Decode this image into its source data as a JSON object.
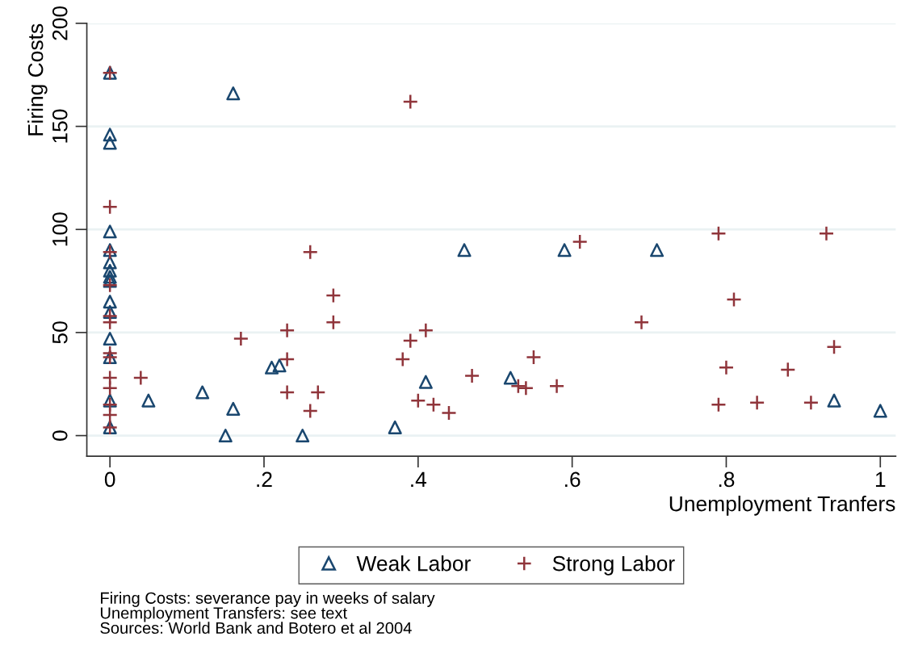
{
  "chart_data": {
    "type": "scatter",
    "xlabel": "Unemployment Tranfers",
    "ylabel": "Firing Costs",
    "xlim": [
      -0.03,
      1.02
    ],
    "ylim": [
      -10,
      200
    ],
    "xticks": [
      {
        "value": 0,
        "label": "0"
      },
      {
        "value": 0.2,
        "label": ".2"
      },
      {
        "value": 0.4,
        "label": ".4"
      },
      {
        "value": 0.6,
        "label": ".6"
      },
      {
        "value": 0.8,
        "label": ".8"
      },
      {
        "value": 1,
        "label": "1"
      }
    ],
    "yticks": [
      0,
      50,
      100,
      150,
      200
    ],
    "grid": "y",
    "legend": "bottom",
    "series": [
      {
        "name": "Weak Labor",
        "color": "#1a476f",
        "marker": "triangle",
        "x": [
          0,
          0,
          0,
          0,
          0,
          0,
          0,
          0,
          0,
          0,
          0,
          0,
          0,
          0,
          0,
          0.05,
          0.12,
          0.16,
          0.16,
          0.15,
          0.21,
          0.22,
          0.25,
          0.37,
          0.41,
          0.46,
          0.52,
          0.59,
          0.71,
          0.94,
          1.0
        ],
        "values": [
          176,
          146,
          142,
          99,
          90,
          84,
          80,
          77,
          75,
          65,
          60,
          47,
          38,
          17,
          4,
          17,
          21,
          166,
          13,
          0,
          33,
          34,
          0,
          4,
          26,
          90,
          28,
          90,
          90,
          17,
          12
        ]
      },
      {
        "name": "Strong Labor",
        "color": "#90353b",
        "marker": "cross",
        "x": [
          0,
          0,
          0,
          0,
          0,
          0,
          0,
          0,
          0,
          0,
          0,
          0,
          0,
          0.04,
          0.17,
          0.23,
          0.23,
          0.23,
          0.26,
          0.26,
          0.27,
          0.29,
          0.29,
          0.39,
          0.38,
          0.39,
          0.41,
          0.4,
          0.42,
          0.44,
          0.47,
          0.53,
          0.54,
          0.58,
          0.55,
          0.61,
          0.69,
          0.79,
          0.81,
          0.93,
          0.94,
          0.8,
          0.88,
          0.79,
          0.84,
          0.91
        ],
        "values": [
          176,
          111,
          89,
          73,
          58,
          55,
          40,
          38,
          28,
          23,
          15,
          10,
          4,
          28,
          47,
          51,
          37,
          21,
          89,
          12,
          21,
          55,
          68,
          162,
          37,
          46,
          51,
          17,
          15,
          11,
          29,
          24,
          23,
          24,
          38,
          94,
          55,
          98,
          66,
          98,
          43,
          33,
          32,
          15,
          16,
          16
        ]
      }
    ],
    "annotations": [
      "Firing Costs: severance pay in weeks of salary",
      "Unemployment Transfers: see text",
      "Sources: World Bank and Botero et al 2004"
    ]
  }
}
